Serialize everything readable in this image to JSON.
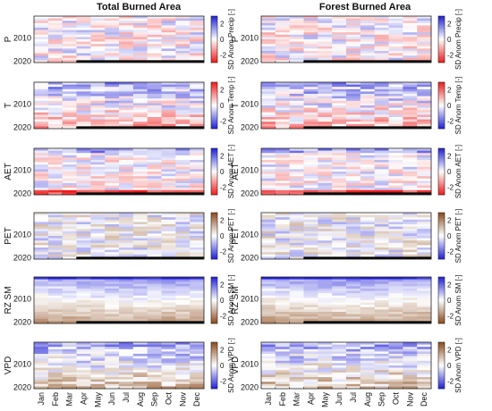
{
  "chart_data": {
    "type": "heatmap",
    "columns": [
      "Total Burned Area",
      "Forest Burned Area"
    ],
    "months": [
      "Jan",
      "Feb",
      "Mar",
      "Apr",
      "May",
      "Jun",
      "Jul",
      "Aug",
      "Sep",
      "Oct",
      "Nov",
      "Dec"
    ],
    "year_ticks": [
      2010,
      2020
    ],
    "panels": [
      {
        "row_label": "P",
        "colorbar_label": "SD Anom Precip [-]",
        "colorbar_ticks": [
          2,
          0,
          -2
        ],
        "colormap": [
          "#ef1a1a",
          "#ffffff",
          "#1f1fd8"
        ],
        "clim": [
          -3,
          3
        ],
        "pattern": "mixed"
      },
      {
        "row_label": "T",
        "colorbar_label": "SD Anom Temp [-]",
        "colorbar_ticks": [
          2,
          0,
          -2
        ],
        "colormap": [
          "#1f1fd8",
          "#ffffff",
          "#ef1a1a"
        ],
        "clim": [
          -3,
          3
        ],
        "pattern": "warming"
      },
      {
        "row_label": "AET",
        "colorbar_label": "SD Anom AET [-]",
        "colorbar_ticks": [
          2,
          0,
          -2
        ],
        "colormap": [
          "#ef1a1a",
          "#ffffff",
          "#1f1fd8"
        ],
        "clim": [
          -3,
          3
        ],
        "pattern": "drying"
      },
      {
        "row_label": "PET",
        "colorbar_label": "SD Anom PET [-]",
        "colorbar_ticks": [
          2,
          0,
          -2
        ],
        "colormap": [
          "#1f1fd8",
          "#ffffff",
          "#8a4a1a"
        ],
        "clim": [
          -3,
          3
        ],
        "pattern": "mixed"
      },
      {
        "row_label": "RZ SM",
        "colorbar_label": "SD Anom SM [-]",
        "colorbar_ticks": [
          2,
          0,
          -2
        ],
        "colormap": [
          "#8a4a1a",
          "#ffffff",
          "#1f1fd8"
        ],
        "clim": [
          -3,
          3
        ],
        "pattern": "soil"
      },
      {
        "row_label": "VPD",
        "colorbar_label": "SD Anom VPD [-]",
        "colorbar_ticks": [
          2,
          0,
          -2
        ],
        "colormap": [
          "#1f1fd8",
          "#ffffff",
          "#8a4a1a"
        ],
        "clim": [
          -3,
          3
        ],
        "pattern": "warming"
      }
    ]
  }
}
